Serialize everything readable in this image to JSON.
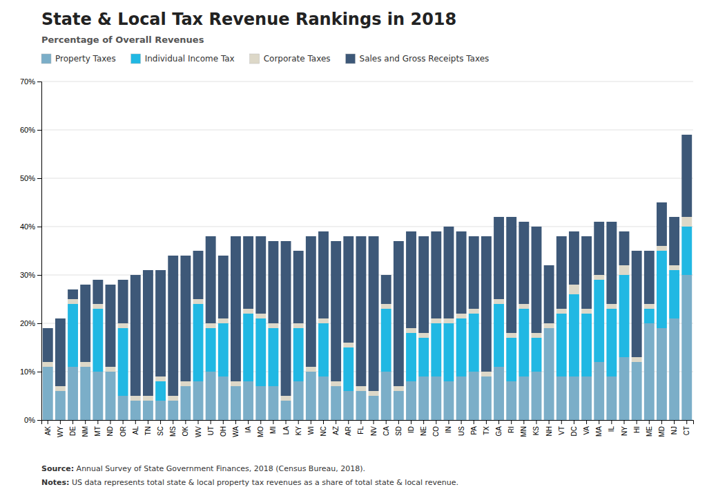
{
  "chart_data": {
    "type": "bar",
    "stacked": true,
    "title": "State & Local Tax Revenue Rankings in 2018",
    "subtitle": "Percentage of Overall Revenues",
    "source": "Source: Annual Survey of State Government Finances, 2018 (Census Bureau, 2018).",
    "notes": "Notes: US data represents total state & local property tax revenues as a share of total state & local revenue.",
    "grid": true,
    "legend": "top-left",
    "categories": [
      "AK",
      "WY",
      "DE",
      "NM",
      "MT",
      "ND",
      "OR",
      "AL",
      "TN",
      "SC",
      "MS",
      "OK",
      "WV",
      "UT",
      "OH",
      "WA",
      "IA",
      "MO",
      "MI",
      "LA",
      "KY",
      "WI",
      "NC",
      "AZ",
      "AR",
      "FL",
      "NV",
      "CA",
      "SD",
      "ID",
      "NE",
      "CO",
      "IN",
      "US",
      "PA",
      "TX",
      "GA",
      "RI",
      "MN",
      "KS",
      "NH",
      "VT",
      "DC",
      "VA",
      "MA",
      "IL",
      "NY",
      "HI",
      "ME",
      "MD",
      "NJ",
      "CT"
    ],
    "series": [
      {
        "name": "Property Taxes",
        "color": "#7baec8",
        "values": [
          0.11,
          0.06,
          0.11,
          0.11,
          0.1,
          0.1,
          0.05,
          0.04,
          0.04,
          0.04,
          0.04,
          0.07,
          0.08,
          0.1,
          0.09,
          0.07,
          0.08,
          0.07,
          0.07,
          0.04,
          0.08,
          0.1,
          0.09,
          0.07,
          0.06,
          0.06,
          0.05,
          0.1,
          0.06,
          0.08,
          0.09,
          0.09,
          0.08,
          0.09,
          0.1,
          0.09,
          0.11,
          0.08,
          0.09,
          0.1,
          0.19,
          0.09,
          0.09,
          0.09,
          0.12,
          0.09,
          0.13,
          0.12,
          0.2,
          0.19,
          0.21,
          0.3
        ]
      },
      {
        "name": "Individual Income Tax",
        "color": "#21b8e3",
        "values": [
          0.0,
          0.0,
          0.13,
          0.0,
          0.13,
          0.0,
          0.14,
          0.0,
          0.0,
          0.04,
          0.0,
          0.0,
          0.16,
          0.09,
          0.11,
          0.0,
          0.14,
          0.14,
          0.12,
          0.0,
          0.11,
          0.0,
          0.11,
          0.0,
          0.09,
          0.0,
          0.0,
          0.13,
          0.0,
          0.1,
          0.08,
          0.11,
          0.12,
          0.12,
          0.12,
          0.0,
          0.13,
          0.09,
          0.14,
          0.07,
          0.0,
          0.13,
          0.17,
          0.13,
          0.17,
          0.14,
          0.17,
          0.0,
          0.03,
          0.16,
          0.1,
          0.1
        ]
      },
      {
        "name": "Corporate Taxes",
        "color": "#ddd8c8",
        "values": [
          0.01,
          0.01,
          0.01,
          0.01,
          0.01,
          0.01,
          0.01,
          0.01,
          0.01,
          0.01,
          0.01,
          0.01,
          0.01,
          0.01,
          0.01,
          0.01,
          0.01,
          0.01,
          0.01,
          0.01,
          0.01,
          0.01,
          0.01,
          0.01,
          0.01,
          0.01,
          0.01,
          0.01,
          0.01,
          0.01,
          0.01,
          0.01,
          0.01,
          0.01,
          0.01,
          0.01,
          0.01,
          0.01,
          0.01,
          0.01,
          0.01,
          0.01,
          0.02,
          0.01,
          0.01,
          0.01,
          0.02,
          0.01,
          0.01,
          0.01,
          0.01,
          0.02
        ]
      },
      {
        "name": "Sales and Gross Receipts Taxes",
        "color": "#3d5878",
        "values": [
          0.07,
          0.14,
          0.02,
          0.16,
          0.05,
          0.17,
          0.09,
          0.25,
          0.26,
          0.22,
          0.29,
          0.26,
          0.1,
          0.18,
          0.13,
          0.3,
          0.15,
          0.16,
          0.17,
          0.32,
          0.15,
          0.27,
          0.18,
          0.29,
          0.22,
          0.31,
          0.32,
          0.06,
          0.3,
          0.2,
          0.2,
          0.18,
          0.19,
          0.17,
          0.15,
          0.28,
          0.17,
          0.24,
          0.17,
          0.22,
          0.12,
          0.15,
          0.11,
          0.15,
          0.11,
          0.17,
          0.07,
          0.22,
          0.11,
          0.09,
          0.1,
          0.17
        ]
      }
    ],
    "ylim": [
      0,
      0.7
    ],
    "yticks": [
      {
        "value": 0.0,
        "label": "0%"
      },
      {
        "value": 0.1,
        "label": "10%"
      },
      {
        "value": 0.2,
        "label": "20%"
      },
      {
        "value": 0.3,
        "label": "30%"
      },
      {
        "value": 0.4,
        "label": "40%"
      },
      {
        "value": 0.5,
        "label": "50%"
      },
      {
        "value": 0.6,
        "label": "60%"
      },
      {
        "value": 0.7,
        "label": "70%"
      }
    ]
  }
}
